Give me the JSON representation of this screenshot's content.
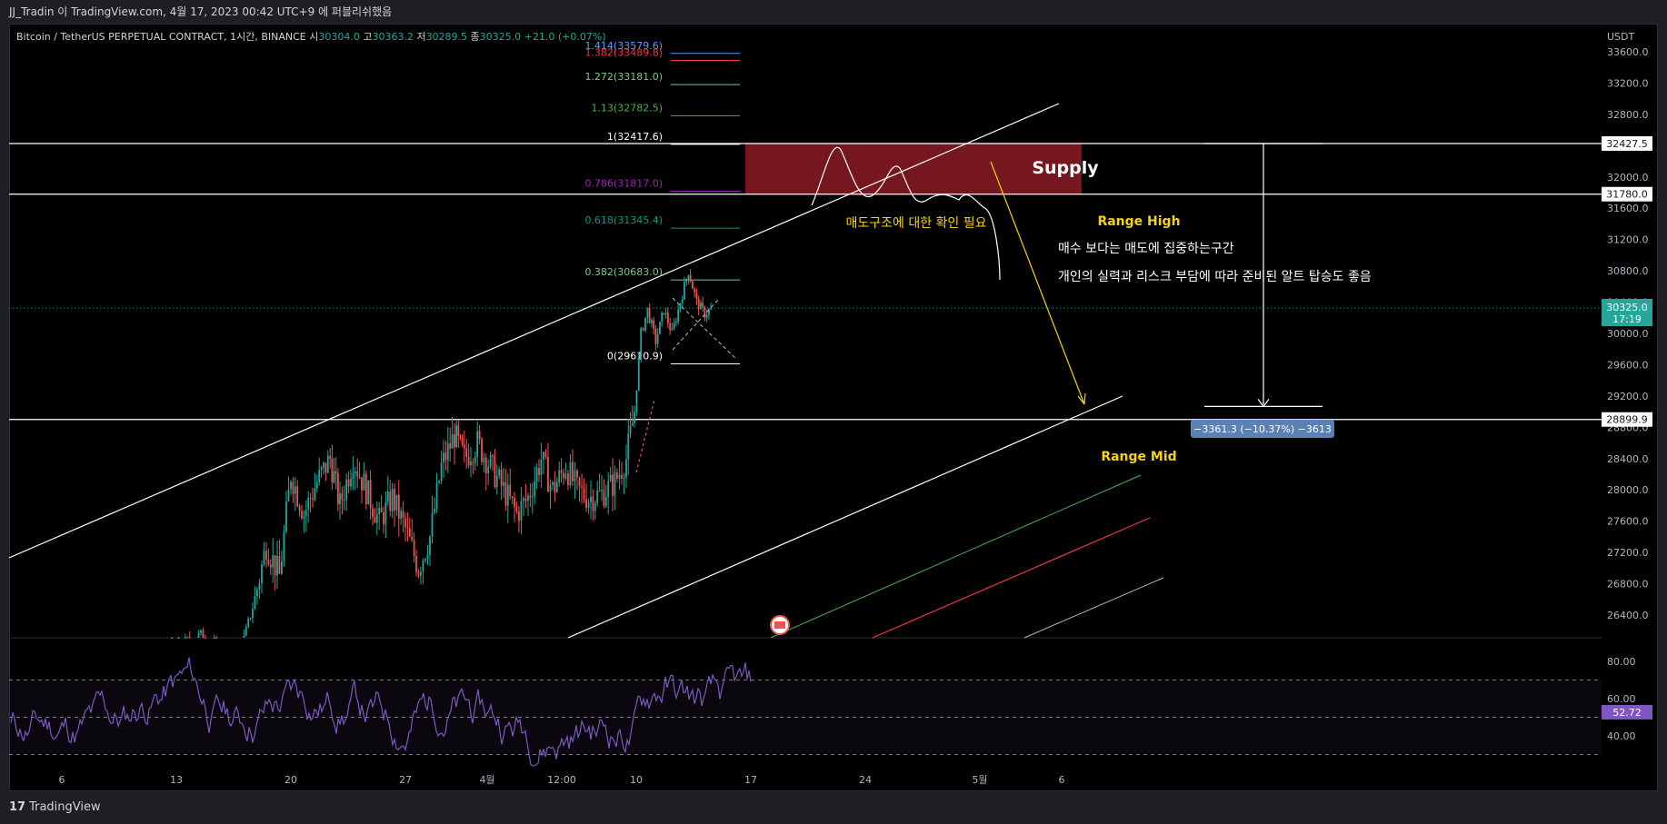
{
  "header": {
    "publish_line": "JJ_Tradin 이 TradingView.com, 4월 17, 2023 00:42 UTC+9 에 퍼블리쉬했음"
  },
  "legend": {
    "symbol": "Bitcoin / TetherUS PERPETUAL CONTRACT, 1시간, BINANCE",
    "o_label": "시",
    "o_val": "30304.0",
    "h_label": "고",
    "h_val": "30363.2",
    "l_label": "저",
    "l_val": "30289.5",
    "c_label": "종",
    "c_val": "30325.0",
    "change": "+21.0 (+0.07%)"
  },
  "footer": {
    "brand": "TradingView",
    "logo_text": "17"
  },
  "colors": {
    "bg": "#000000",
    "up": "#26a69a",
    "down": "#ef5350",
    "rsi": "#7e57c2",
    "supply": "#8b1a24",
    "annotation_yellow": "#f5d312",
    "axis_text": "#b2b5be"
  },
  "chart_data": {
    "type": "candlestick",
    "currency": "USDT",
    "ylim": [
      26000,
      33900
    ],
    "y_ticks": [
      26400,
      26800,
      27200,
      27600,
      28000,
      28400,
      28800,
      29200,
      29600,
      30000,
      30400,
      30800,
      31200,
      31600,
      32000,
      32400,
      32800,
      33200,
      33600
    ],
    "x_ticks": [
      "6",
      "13",
      "20",
      "27",
      "4월",
      "12:00",
      "10",
      "17",
      "24",
      "5월",
      "6"
    ],
    "price_tags": [
      {
        "value": "32427.5",
        "kind": "level"
      },
      {
        "value": "31780.0",
        "kind": "level"
      },
      {
        "value": "28899.9",
        "kind": "level"
      }
    ],
    "last_price": {
      "value": "30325.0",
      "countdown": "17:19"
    },
    "horizontal_levels": [
      32427.5,
      31780.0,
      28899.9
    ],
    "fib_levels": [
      {
        "label": "1.414(33579.6)",
        "value": 33579.6,
        "color": "#5b9cf6"
      },
      {
        "label": "1.382(33489.8)",
        "value": 33489.8,
        "color": "#f23645"
      },
      {
        "label": "1.272(33181.0)",
        "value": 33181.0,
        "color": "#81c784"
      },
      {
        "label": "1.13(32782.5)",
        "value": 32782.5,
        "color": "#4caf50"
      },
      {
        "label": "1(32417.6)",
        "value": 32417.6,
        "color": "#ffffff"
      },
      {
        "label": "0.786(31817.0)",
        "value": 31817.0,
        "color": "#9c27b0"
      },
      {
        "label": "0.618(31345.4)",
        "value": 31345.4,
        "color": "#089981"
      },
      {
        "label": "0.382(30683.0)",
        "value": 30683.0,
        "color": "#81c784"
      },
      {
        "label": "0(29610.9)",
        "value": 29610.9,
        "color": "#ffffff"
      }
    ],
    "supply_zone": {
      "label": "Supply",
      "top": 32427.5,
      "bottom": 31780.0
    },
    "annotations": {
      "confirm": "매도구조에 대한 확인 필요",
      "range_high": "Range High",
      "range_mid": "Range Mid",
      "note1": "매수 보다는 매도에 집중하는구간",
      "note2": "개인의 실력과 리스크 부담에 따라 준비된 알트 탑승도 좋음"
    },
    "measure": {
      "label": "−3361.3 (−10.37%) −3613",
      "from": 32427.5,
      "to": 29066.2
    },
    "candles_sampled": [
      {
        "day": 4.0,
        "close": 25880
      },
      {
        "day": 5.5,
        "close": 25950
      },
      {
        "day": 7.0,
        "close": 25800
      },
      {
        "day": 9.0,
        "close": 25900
      },
      {
        "day": 11.0,
        "close": 25950
      },
      {
        "day": 13.0,
        "close": 26000
      },
      {
        "day": 14.5,
        "close": 26150
      },
      {
        "day": 16.0,
        "close": 25900
      },
      {
        "day": 17.0,
        "close": 26000
      },
      {
        "day": 17.8,
        "close": 26600
      },
      {
        "day": 18.5,
        "close": 27300
      },
      {
        "day": 19.3,
        "close": 26900
      },
      {
        "day": 20.0,
        "close": 28200
      },
      {
        "day": 20.8,
        "close": 27700
      },
      {
        "day": 21.6,
        "close": 28100
      },
      {
        "day": 22.4,
        "close": 28400
      },
      {
        "day": 23.0,
        "close": 27800
      },
      {
        "day": 23.8,
        "close": 28400
      },
      {
        "day": 24.6,
        "close": 28000
      },
      {
        "day": 25.4,
        "close": 27600
      },
      {
        "day": 26.2,
        "close": 27900
      },
      {
        "day": 27.0,
        "close": 27500
      },
      {
        "day": 27.8,
        "close": 27000
      },
      {
        "day": 28.5,
        "close": 27400
      },
      {
        "day": 29.2,
        "close": 28300
      },
      {
        "day": 30.0,
        "close": 28700
      },
      {
        "day": 30.6,
        "close": 28400
      },
      {
        "day": 31.4,
        "close": 28600
      },
      {
        "day": 32.2,
        "close": 28300
      },
      {
        "day": 33.0,
        "close": 28000
      },
      {
        "day": 33.8,
        "close": 27700
      },
      {
        "day": 34.5,
        "close": 27900
      },
      {
        "day": 35.3,
        "close": 28400
      },
      {
        "day": 36.0,
        "close": 28000
      },
      {
        "day": 36.8,
        "close": 28300
      },
      {
        "day": 37.5,
        "close": 28000
      },
      {
        "day": 38.2,
        "close": 27900
      },
      {
        "day": 39.0,
        "close": 27950
      },
      {
        "day": 39.8,
        "close": 28100
      },
      {
        "day": 40.5,
        "close": 28400
      },
      {
        "day": 41.0,
        "close": 29000
      },
      {
        "day": 41.4,
        "close": 30000
      },
      {
        "day": 41.8,
        "close": 30300
      },
      {
        "day": 42.3,
        "close": 29900
      },
      {
        "day": 42.8,
        "close": 30300
      },
      {
        "day": 43.3,
        "close": 30000
      },
      {
        "day": 43.8,
        "close": 30400
      },
      {
        "day": 44.3,
        "close": 30800
      },
      {
        "day": 44.8,
        "close": 30400
      },
      {
        "day": 45.3,
        "close": 30250
      },
      {
        "day": 45.8,
        "close": 30330
      }
    ],
    "rsi": {
      "ylim": [
        20,
        95
      ],
      "y_ticks": [
        40.0,
        60.0,
        80.0
      ],
      "bands": [
        30,
        50,
        70
      ],
      "last": "52.72"
    }
  }
}
